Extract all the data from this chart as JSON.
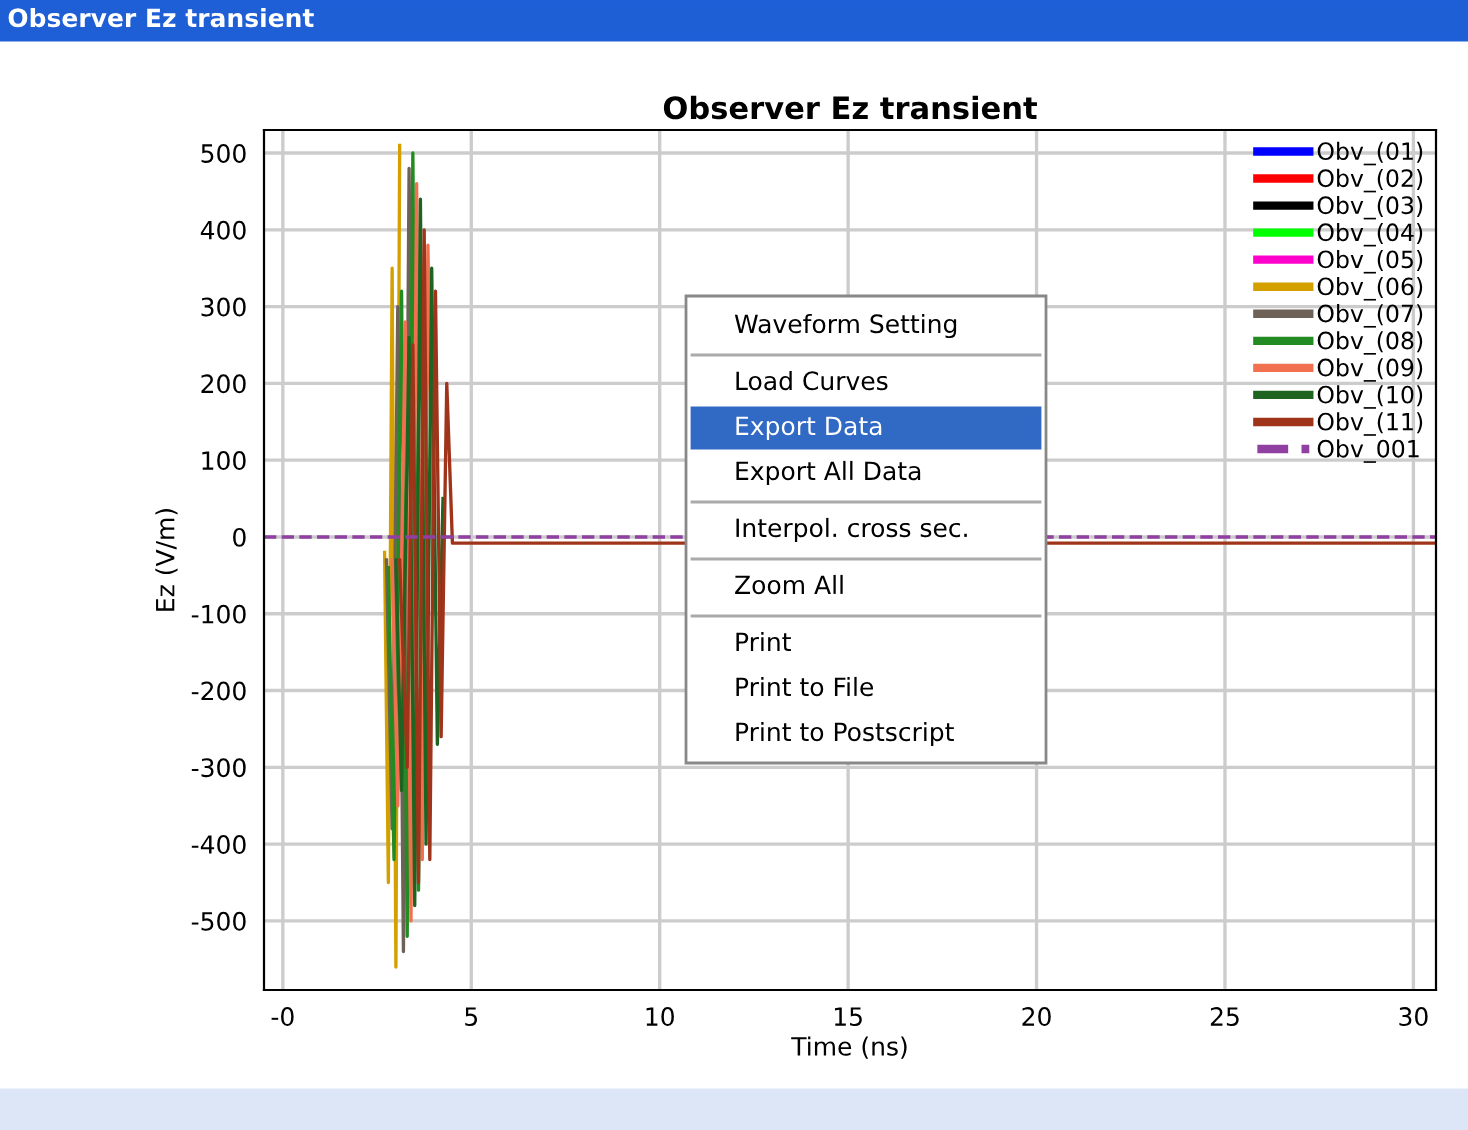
{
  "chart_data": {
    "type": "line",
    "title": "Observer Ez transient",
    "xlabel": "Time (ns)",
    "ylabel": "Ez (V/m)",
    "xlim": [
      -0.5,
      30.6
    ],
    "ylim": [
      -590,
      530
    ],
    "xticks": [
      {
        "value": 0,
        "label": "-0"
      },
      5,
      10,
      15,
      20,
      25,
      30
    ],
    "yticks": [
      -500,
      -400,
      -300,
      -200,
      -100,
      0,
      100,
      200,
      300,
      400,
      500
    ],
    "grid": true,
    "legend": "top right",
    "series": [
      {
        "name": "Obv_(01)",
        "color": "#0000ff"
      },
      {
        "name": "Obv_(02)",
        "color": "#ff0000"
      },
      {
        "name": "Obv_(03)",
        "color": "#000000"
      },
      {
        "name": "Obv_(04)",
        "color": "#00ff00"
      },
      {
        "name": "Obv_(05)",
        "color": "#ff00cc"
      },
      {
        "name": "Obv_(06)",
        "color": "#d4a000",
        "x": [
          2.7,
          2.8,
          2.9,
          3.0,
          3.1
        ],
        "values": [
          -20,
          -450,
          350,
          -560,
          510
        ]
      },
      {
        "name": "Obv_(07)",
        "color": "#6e6258",
        "x": [
          2.75,
          2.9,
          3.05,
          3.2,
          3.35,
          3.5
        ],
        "values": [
          -30,
          -380,
          300,
          -540,
          480,
          -300
        ]
      },
      {
        "name": "Obv_(08)",
        "color": "#228b22",
        "x": [
          2.8,
          2.95,
          3.15,
          3.3,
          3.45,
          3.6,
          3.75
        ],
        "values": [
          -40,
          -420,
          320,
          -520,
          500,
          -460,
          200
        ]
      },
      {
        "name": "Obv_(09)",
        "color": "#f07050",
        "x": [
          2.9,
          3.05,
          3.25,
          3.4,
          3.55,
          3.7,
          3.85,
          4.0
        ],
        "values": [
          -30,
          -350,
          280,
          -500,
          460,
          -420,
          380,
          -100
        ]
      },
      {
        "name": "Obv_(10)",
        "color": "#1e6420",
        "x": [
          3.0,
          3.15,
          3.35,
          3.5,
          3.65,
          3.8,
          3.95,
          4.1,
          4.25
        ],
        "values": [
          -30,
          -330,
          260,
          -480,
          440,
          -400,
          350,
          -270,
          50
        ]
      },
      {
        "name": "Obv_(11)",
        "color": "#a0341a",
        "x": [
          3.1,
          3.3,
          3.45,
          3.6,
          3.75,
          3.9,
          4.05,
          4.2,
          4.35,
          4.5,
          30.6
        ],
        "values": [
          -30,
          -300,
          250,
          -450,
          400,
          -420,
          320,
          -260,
          200,
          -8,
          -8
        ]
      },
      {
        "name": "Obv_001",
        "color": "#9040a0",
        "line_style": "dashed",
        "x": [
          -0.5,
          30.6
        ],
        "values": [
          0,
          0
        ]
      }
    ],
    "annotations": [
      "Waveform Setting",
      "Load Curves",
      "Export Data",
      "Export All Data",
      "Interpol. cross sec.",
      "Zoom All",
      "Print",
      "Print to File",
      "Print to Postscript"
    ]
  }
}
